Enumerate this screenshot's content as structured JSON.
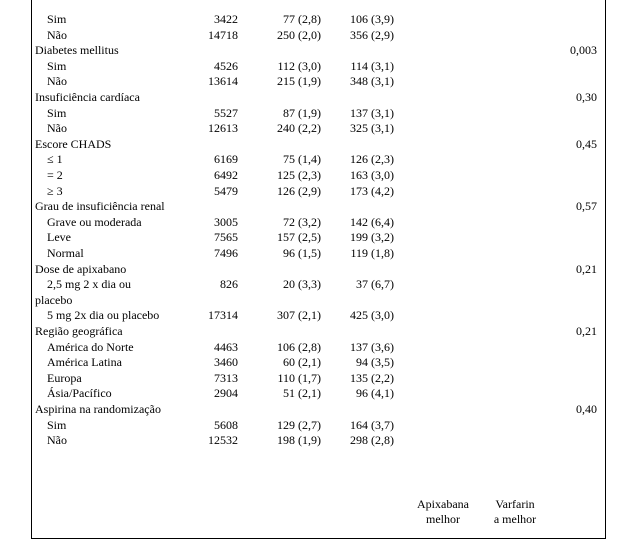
{
  "rows": [
    {
      "label": "Sim",
      "indent": true,
      "n": "3422",
      "apixabana": "77 (2,8)",
      "varfarina": "106 (3,9)",
      "p": ""
    },
    {
      "label": "Não",
      "indent": true,
      "n": "14718",
      "apixabana": "250 (2,0)",
      "varfarina": "356 (2,9)",
      "p": ""
    },
    {
      "label": "Diabetes mellitus",
      "indent": false,
      "n": "",
      "apixabana": "",
      "varfarina": "",
      "p": "0,003"
    },
    {
      "label": "Sim",
      "indent": true,
      "n": "4526",
      "apixabana": "112 (3,0)",
      "varfarina": "114 (3,1)",
      "p": ""
    },
    {
      "label": "Não",
      "indent": true,
      "n": "13614",
      "apixabana": "215 (1,9)",
      "varfarina": "348 (3,1)",
      "p": ""
    },
    {
      "label": "Insuficiência cardíaca",
      "indent": false,
      "n": "",
      "apixabana": "",
      "varfarina": "",
      "p": "0,30"
    },
    {
      "label": "Sim",
      "indent": true,
      "n": "5527",
      "apixabana": "87 (1,9)",
      "varfarina": "137 (3,1)",
      "p": ""
    },
    {
      "label": "Não",
      "indent": true,
      "n": "12613",
      "apixabana": "240 (2,2)",
      "varfarina": "325 (3,1)",
      "p": ""
    },
    {
      "label": "Escore CHADS",
      "indent": false,
      "n": "",
      "apixabana": "",
      "varfarina": "",
      "p": "0,45"
    },
    {
      "label": "≤ 1",
      "indent": true,
      "n": "6169",
      "apixabana": "75 (1,4)",
      "varfarina": "126 (2,3)",
      "p": ""
    },
    {
      "label": "= 2",
      "indent": true,
      "n": "6492",
      "apixabana": "125 (2,3)",
      "varfarina": "163 (3,0)",
      "p": ""
    },
    {
      "label": "≥ 3",
      "indent": true,
      "n": "5479",
      "apixabana": "126 (2,9)",
      "varfarina": "173 (4,2)",
      "p": ""
    },
    {
      "label": "Grau de insuficiência renal",
      "indent": false,
      "n": "",
      "apixabana": "",
      "varfarina": "",
      "p": "0,57"
    },
    {
      "label": "Grave ou moderada",
      "indent": true,
      "n": "3005",
      "apixabana": "72 (3,2)",
      "varfarina": "142 (6,4)",
      "p": ""
    },
    {
      "label": "Leve",
      "indent": true,
      "n": "7565",
      "apixabana": "157 (2,5)",
      "varfarina": "199 (3,2)",
      "p": ""
    },
    {
      "label": "Normal",
      "indent": true,
      "n": "7496",
      "apixabana": "96 (1,5)",
      "varfarina": "119 (1,8)",
      "p": ""
    },
    {
      "label": "Dose de apixabano",
      "indent": false,
      "n": "",
      "apixabana": "",
      "varfarina": "",
      "p": "0,21"
    },
    {
      "label": "2,5 mg 2 x dia ou",
      "indent": true,
      "n": "826",
      "apixabana": "20 (3,3)",
      "varfarina": "37 (6,7)",
      "p": ""
    },
    {
      "label": "placebo",
      "indent": false,
      "n": "",
      "apixabana": "",
      "varfarina": "",
      "p": ""
    },
    {
      "label": "5 mg 2x dia ou placebo",
      "indent": true,
      "n": "17314",
      "apixabana": "307 (2,1)",
      "varfarina": "425 (3,0)",
      "p": ""
    },
    {
      "label": "Região geográfica",
      "indent": false,
      "n": "",
      "apixabana": "",
      "varfarina": "",
      "p": "0,21"
    },
    {
      "label": "América do Norte",
      "indent": true,
      "n": "4463",
      "apixabana": "106 (2,8)",
      "varfarina": "137 (3,6)",
      "p": ""
    },
    {
      "label": "América Latina",
      "indent": true,
      "n": "3460",
      "apixabana": "60 (2,1)",
      "varfarina": "94 (3,5)",
      "p": ""
    },
    {
      "label": "Europa",
      "indent": true,
      "n": "7313",
      "apixabana": "110 (1,7)",
      "varfarina": "135 (2,2)",
      "p": ""
    },
    {
      "label": "Ásia/Pacífico",
      "indent": true,
      "n": "2904",
      "apixabana": "51 (2,1)",
      "varfarina": "96 (4,1)",
      "p": ""
    },
    {
      "label": "Aspirina na randomização",
      "indent": false,
      "n": "",
      "apixabana": "",
      "varfarina": "",
      "p": "0,40"
    },
    {
      "label": "Sim",
      "indent": true,
      "n": "5608",
      "apixabana": "129 (2,7)",
      "varfarina": "164 (3,7)",
      "p": ""
    },
    {
      "label": "Não",
      "indent": true,
      "n": "12532",
      "apixabana": "198 (1,9)",
      "varfarina": "298 (2,8)",
      "p": ""
    }
  ],
  "legend": {
    "apixabana_line1": "Apixabana",
    "apixabana_line2": "melhor",
    "varfarin_line1": "Varfarin",
    "varfarin_line2": "a melhor"
  }
}
